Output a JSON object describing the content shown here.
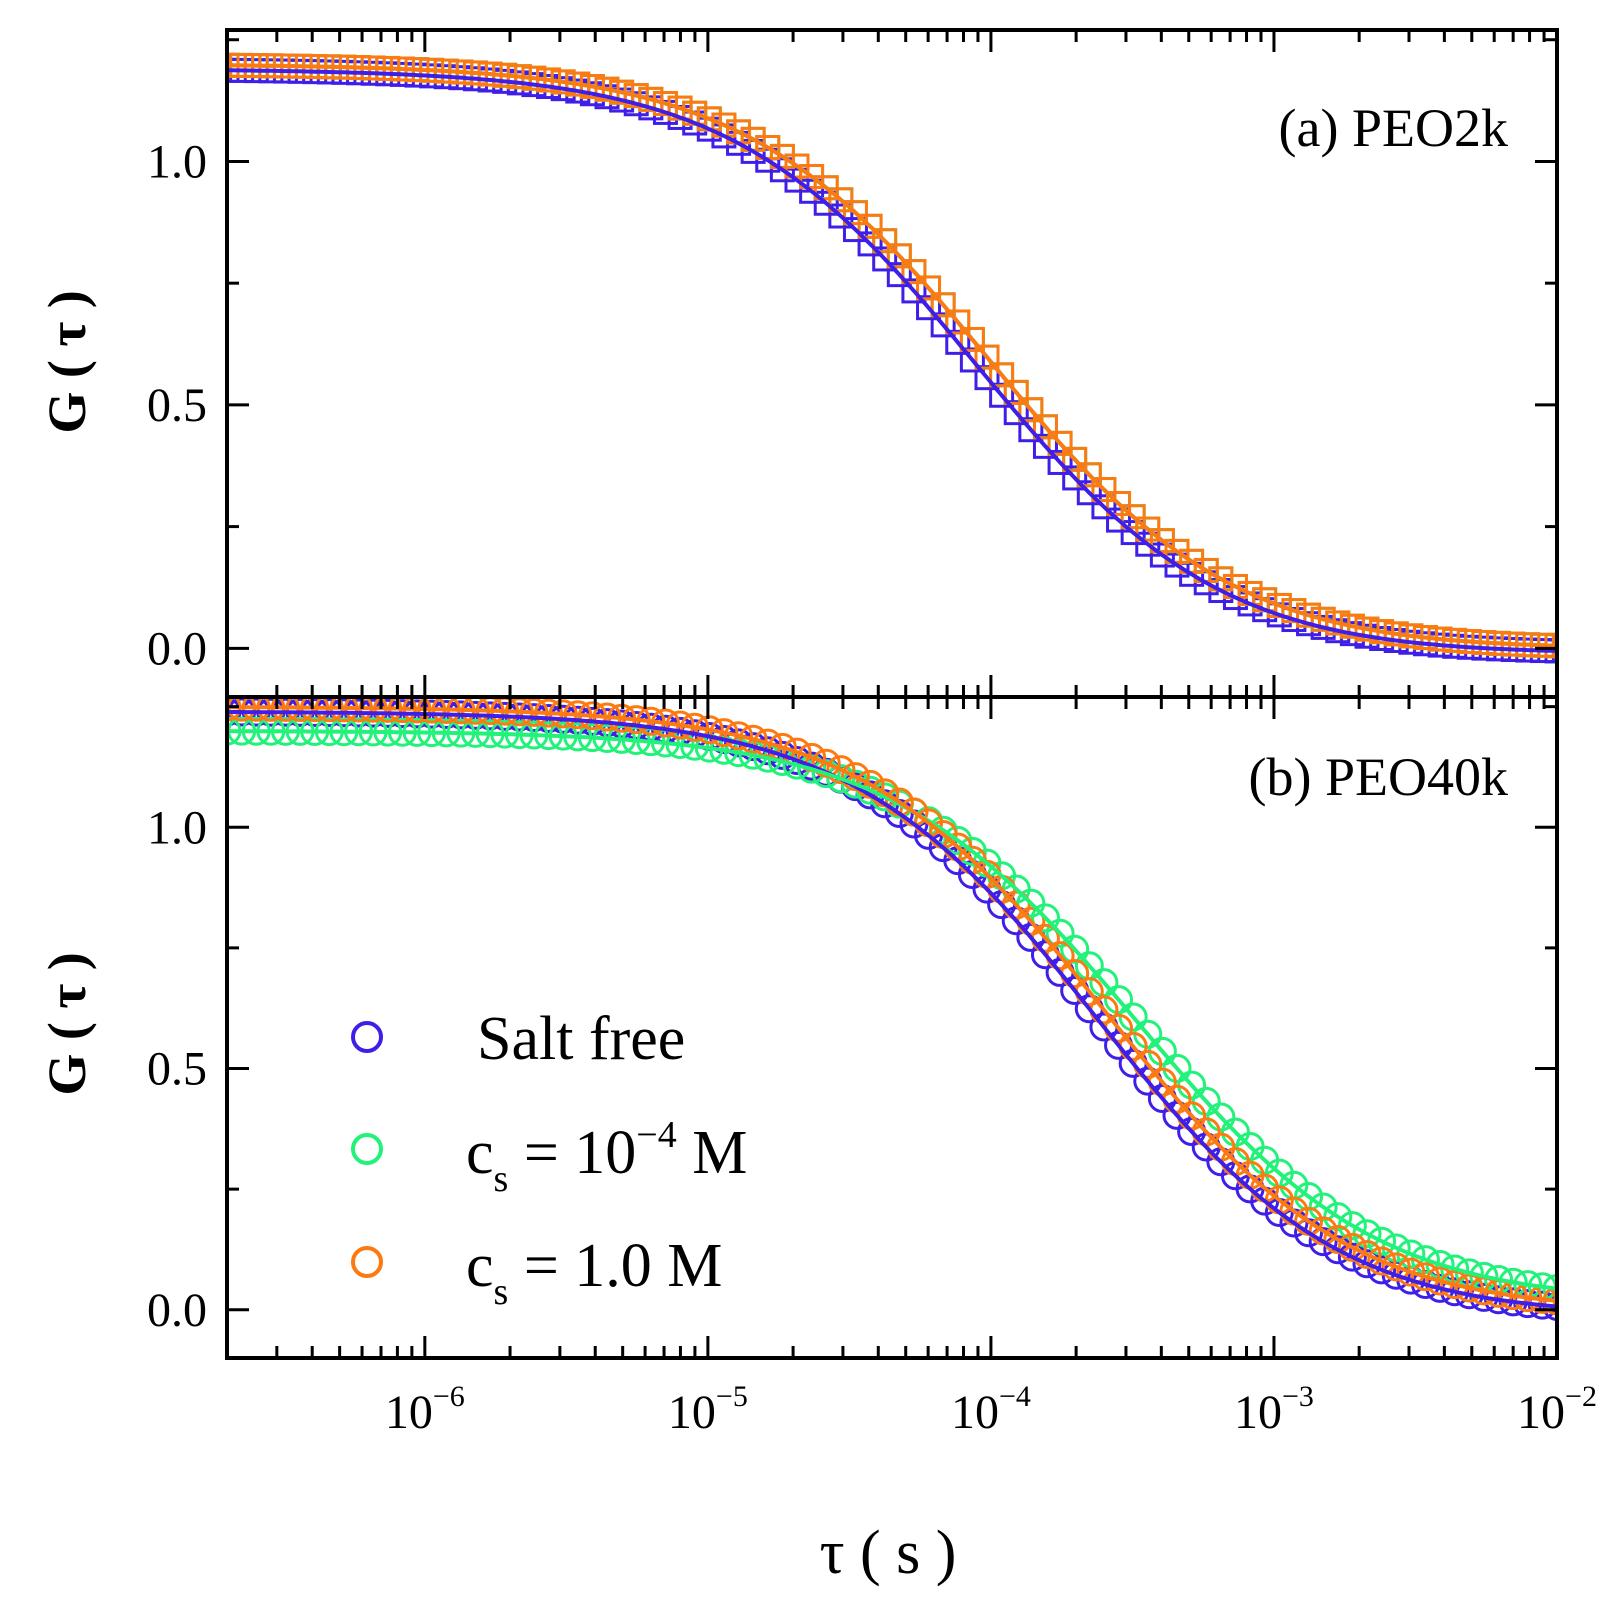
{
  "chart_data": {
    "type": "scatter",
    "x_scale": "log",
    "xlim": [
      2e-07,
      0.01
    ],
    "xlabel": "τ ( s )",
    "x_ticks": [
      {
        "base": "10",
        "exp": "−6",
        "value": 1e-06
      },
      {
        "base": "10",
        "exp": "−5",
        "value": 1e-05
      },
      {
        "base": "10",
        "exp": "−4",
        "value": 0.0001
      },
      {
        "base": "10",
        "exp": "−3",
        "value": 0.001
      },
      {
        "base": "10",
        "exp": "−2",
        "value": 0.01
      }
    ],
    "colors": {
      "salt_free": "#3f1fe8",
      "cs_1e-4": "#22f27a",
      "cs_1": "#fd7a12"
    },
    "panels": [
      {
        "label": "(a) PEO2k",
        "ylabel": "G ( τ )",
        "ylim": [
          -0.1,
          1.27
        ],
        "y_ticks": [
          "0.0",
          "0.5",
          "1.0"
        ],
        "marker": "square",
        "series": [
          {
            "name": "Salt free",
            "color": "#3f1fe8",
            "G0": 1.2,
            "tau_D": 9e-05,
            "S2": 25,
            "offset": -0.01
          },
          {
            "name": "cs = 10⁻⁴ M",
            "color": "#22f27a",
            "G0": 1.2,
            "tau_D": 0.0001,
            "S2": 25,
            "offset": 0.0
          },
          {
            "name": "cs = 1.0 M",
            "color": "#fd7a12",
            "G0": 1.2,
            "tau_D": 0.0001,
            "S2": 25,
            "offset": 0.0
          }
        ]
      },
      {
        "label": "(b) PEO40k",
        "ylabel": "G ( τ )",
        "ylim": [
          -0.1,
          1.27
        ],
        "y_ticks": [
          "0.0",
          "0.5",
          "1.0"
        ],
        "marker": "circle",
        "series": [
          {
            "name": "Salt free",
            "color": "#3f1fe8",
            "G0": 1.25,
            "tau_D": 0.00024,
            "S2": 20,
            "offset": -0.01
          },
          {
            "name": "cs = 10⁻⁴ M",
            "color": "#22f27a",
            "G0": 1.18,
            "tau_D": 0.00033,
            "S2": 20,
            "offset": 0.02
          },
          {
            "name": "cs = 1.0 M",
            "color": "#fd7a12",
            "G0": 1.25,
            "tau_D": 0.00026,
            "S2": 20,
            "offset": 0.0
          }
        ]
      }
    ],
    "legend": {
      "placement": "lower-left of panel (b)",
      "entries": [
        {
          "text": "Salt free",
          "color": "#3f1fe8"
        },
        {
          "main": "c",
          "sub": "s",
          "rest": " = 10",
          "sup": "−4",
          "tail": " M",
          "color": "#22f27a"
        },
        {
          "main": "c",
          "sub": "s",
          "rest": " = 1.0 M",
          "color": "#fd7a12"
        }
      ]
    }
  }
}
